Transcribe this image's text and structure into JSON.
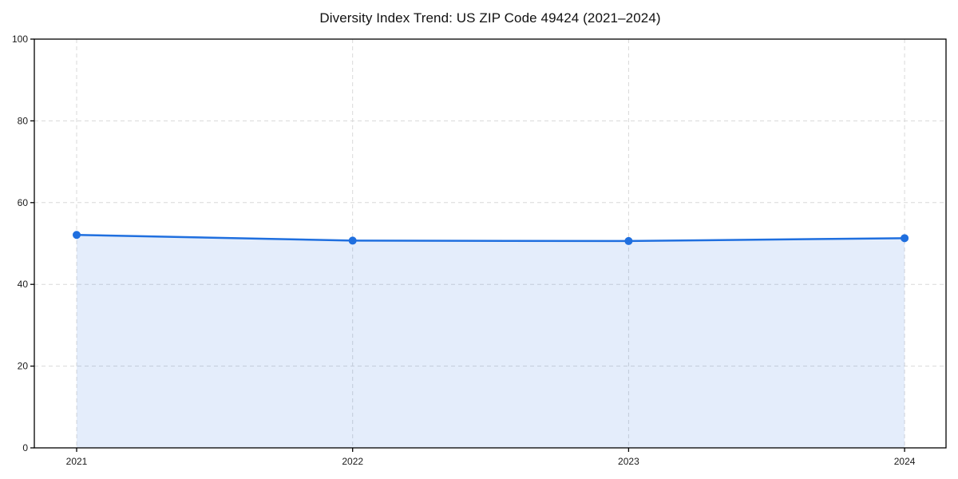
{
  "figure": {
    "background": "#ffffff"
  },
  "chart_data": {
    "type": "area",
    "title": "Diversity Index Trend: US ZIP Code 49424 (2021–2024)",
    "x": [
      "2021",
      "2022",
      "2023",
      "2024"
    ],
    "values": [
      52.1,
      50.7,
      50.6,
      51.3
    ],
    "xlabel": "",
    "ylabel": "",
    "ylim": [
      0,
      100
    ],
    "yticks": [
      0,
      20,
      40,
      60,
      80,
      100
    ],
    "grid": "dashed, horizontal and vertical",
    "legend": "none",
    "colors": {
      "line": "#1f6fdf",
      "marker": "#1f6fdf",
      "fill": "rgba(31, 111, 223, 0.12)",
      "grid": "#d9d9d9",
      "spine": "#000000",
      "tick_label": "#1a1a1a",
      "title": "#111111"
    }
  }
}
